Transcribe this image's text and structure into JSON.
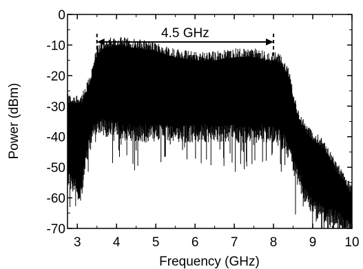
{
  "chart_data": {
    "type": "area",
    "xlabel": "Frequency (GHz)",
    "ylabel": "Power (dBm)",
    "xlim": [
      2.75,
      10
    ],
    "ylim": [
      -70,
      0
    ],
    "xticks": [
      3,
      4,
      5,
      6,
      7,
      8,
      9,
      10
    ],
    "xtick_labels": [
      "3",
      "4",
      "5",
      "6",
      "7",
      "8",
      "9",
      "10"
    ],
    "yticks": [
      0,
      -10,
      -20,
      -30,
      -40,
      -50,
      -60,
      -70
    ],
    "ytick_labels": [
      "0",
      "-10",
      "-20",
      "-30",
      "-40",
      "-50",
      "-60",
      "-70"
    ],
    "grid": false,
    "series": [
      {
        "color": "#000000",
        "x": [
          2.75,
          2.9,
          3.1,
          3.2,
          3.3,
          3.4,
          3.5,
          3.7,
          4.0,
          4.5,
          5.0,
          5.5,
          6.0,
          6.5,
          7.0,
          7.5,
          7.8,
          8.0,
          8.2,
          8.4,
          8.5,
          8.6,
          8.8,
          9.0,
          9.2,
          9.4,
          9.6,
          9.8,
          10.0
        ],
        "upper": [
          -28,
          -28,
          -28,
          -26,
          -22,
          -18,
          -12,
          -10,
          -9,
          -10,
          -11,
          -13,
          -14,
          -14,
          -13,
          -13,
          -14,
          -14,
          -15,
          -20,
          -26,
          -32,
          -37,
          -40,
          -42,
          -45,
          -50,
          -54,
          -58
        ],
        "lower": [
          -52,
          -55,
          -58,
          -48,
          -42,
          -38,
          -35,
          -36,
          -37,
          -38,
          -38,
          -38,
          -38,
          -38,
          -38,
          -38,
          -38,
          -38,
          -40,
          -44,
          -48,
          -52,
          -58,
          -62,
          -64,
          -65,
          -66,
          -68,
          -70
        ]
      }
    ],
    "annotations": [
      {
        "text": "4.5 GHz",
        "x_start": 3.5,
        "x_end": 8.0,
        "y": -9
      }
    ]
  }
}
